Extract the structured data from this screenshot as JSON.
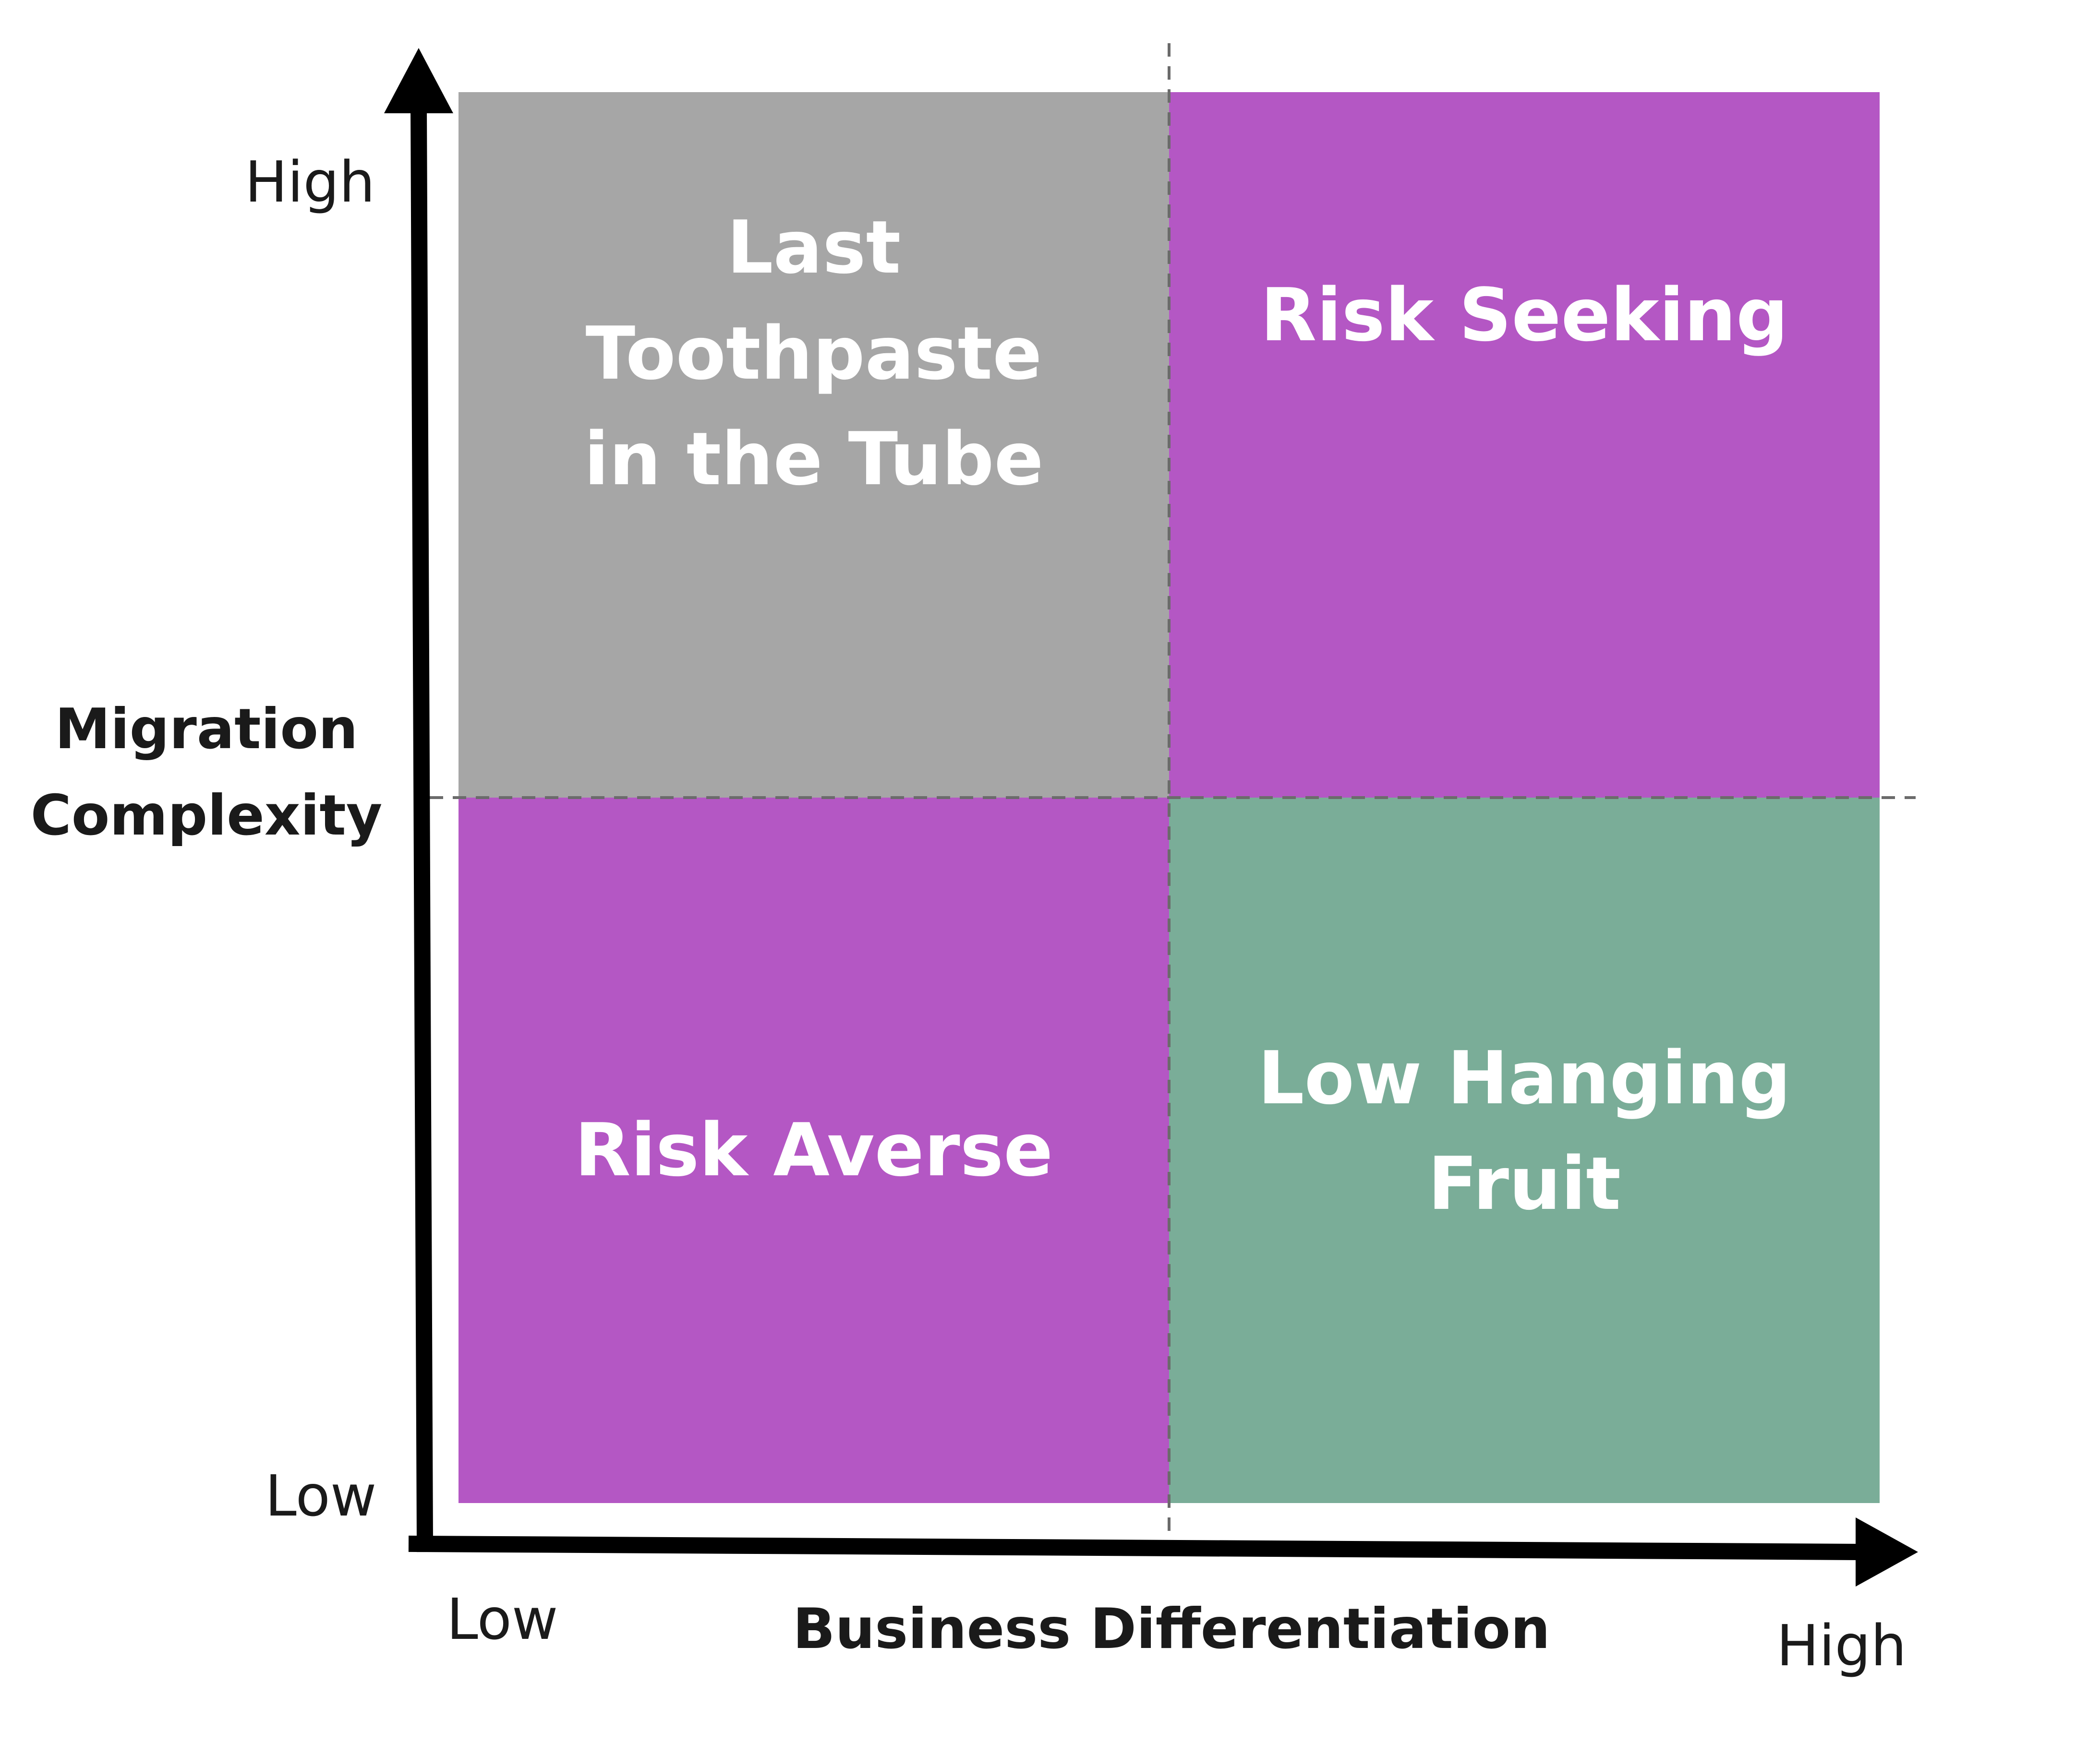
{
  "quadrants": {
    "top_left": {
      "label": "Last Toothpaste\nin the Tube",
      "color": "#a6a6a6"
    },
    "top_right": {
      "label": "Risk Seeking",
      "color": "#b457c4"
    },
    "bottom_left": {
      "label": "Risk Averse",
      "color": "#b457c4"
    },
    "bottom_right": {
      "label": "Low Hanging\nFruit",
      "color": "#7aad98"
    }
  },
  "y_axis": {
    "title": "Migration\nComplexity",
    "high_label": "High",
    "low_label": "Low"
  },
  "x_axis": {
    "title": "Business Differentiation",
    "low_label": "Low",
    "high_label": "High"
  },
  "colors": {
    "axis": "#000000",
    "divider": "#6b6b6b",
    "text": "#1a1a1a",
    "label_text": "#ffffff"
  }
}
